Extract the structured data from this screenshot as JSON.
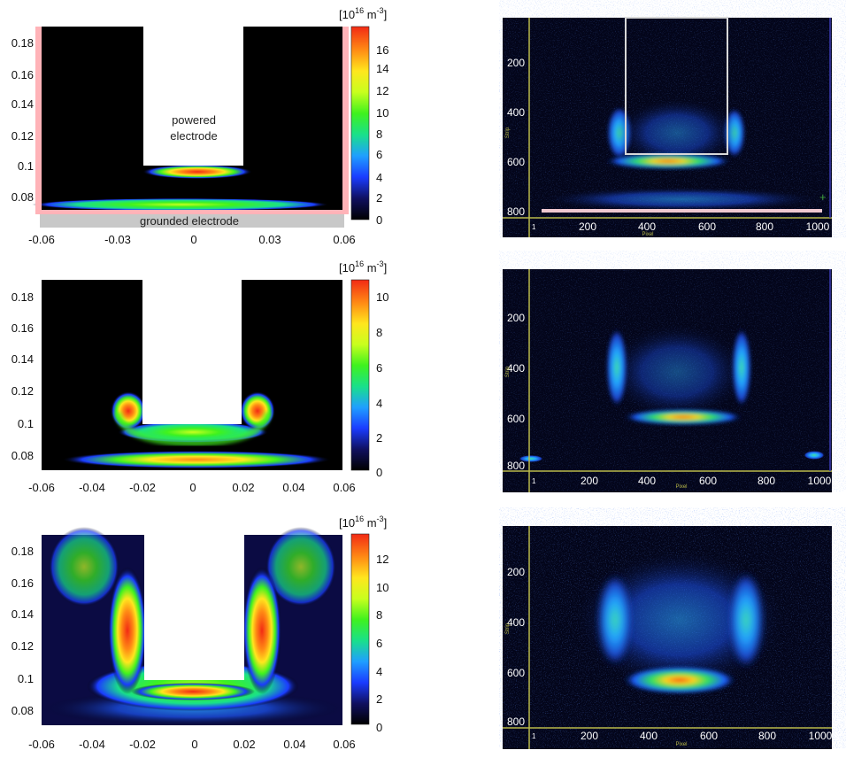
{
  "chart_data": [
    {
      "type": "heatmap",
      "panel": "simulation",
      "xlim": [
        -0.06,
        0.06
      ],
      "ylim": [
        0.065,
        0.192
      ],
      "xticks": [
        "-0.06",
        "-0.03",
        "0",
        "0.03",
        "0.06"
      ],
      "yticks": [
        "0.18",
        "0.16",
        "0.14",
        "0.12",
        "0.1",
        "0.08"
      ],
      "colorbar_unit": "[10",
      "colorbar_unit_sup": "16",
      "colorbar_unit_rest": " m",
      "colorbar_unit_sup2": "-3",
      "colorbar_unit_end": "]",
      "colorbar_range": [
        0,
        18
      ],
      "colorbar_ticks": [
        "16",
        "14",
        "12",
        "10",
        "8",
        "6",
        "4",
        "2",
        "0"
      ],
      "annotations": [
        "powered",
        "electrode",
        "grounded electrode"
      ],
      "electrode_x": [
        -0.02,
        0.02
      ],
      "electrode_bottom_y": 0.1,
      "peak_density": 17.0,
      "peak_location": {
        "x": 0.0,
        "y": 0.097
      }
    },
    {
      "type": "heatmap",
      "panel": "camera image",
      "xticks": [
        "1",
        "200",
        "400",
        "600",
        "800",
        "1000"
      ],
      "yticks": [
        "200",
        "400",
        "600",
        "800"
      ],
      "xlabel": "Pixel",
      "ylabel": "Strip"
    },
    {
      "type": "heatmap",
      "panel": "simulation",
      "xlim": [
        -0.06,
        0.06
      ],
      "ylim": [
        0.068,
        0.193
      ],
      "xticks": [
        "-0.06",
        "-0.04",
        "-0.02",
        "0",
        "0.02",
        "0.04",
        "0.06"
      ],
      "yticks": [
        "0.18",
        "0.16",
        "0.14",
        "0.12",
        "0.1",
        "0.08"
      ],
      "colorbar_unit": "[10",
      "colorbar_unit_sup": "16",
      "colorbar_unit_rest": " m",
      "colorbar_unit_sup2": "-3",
      "colorbar_unit_end": "]",
      "colorbar_range": [
        0,
        10.8
      ],
      "colorbar_ticks": [
        "10",
        "8",
        "6",
        "4",
        "2",
        "0"
      ],
      "electrode_x": [
        -0.02,
        0.02
      ],
      "electrode_bottom_y": 0.1,
      "peak_density": 10.5,
      "peak_location": {
        "x": -0.026,
        "y": 0.105
      }
    },
    {
      "type": "heatmap",
      "panel": "camera image",
      "xticks": [
        "1",
        "200",
        "400",
        "600",
        "800",
        "1000"
      ],
      "yticks": [
        "200",
        "400",
        "600",
        "800"
      ],
      "xlabel": "Pixel",
      "ylabel": "Strip"
    },
    {
      "type": "heatmap",
      "panel": "simulation",
      "xlim": [
        -0.06,
        0.06
      ],
      "ylim": [
        0.068,
        0.19
      ],
      "xticks": [
        "-0.06",
        "-0.04",
        "-0.02",
        "0",
        "0.02",
        "0.04",
        "0.06"
      ],
      "yticks": [
        "0.18",
        "0.16",
        "0.14",
        "0.12",
        "0.1",
        "0.08"
      ],
      "colorbar_unit": "[10",
      "colorbar_unit_sup": "16",
      "colorbar_unit_rest": " m",
      "colorbar_unit_sup2": "-3",
      "colorbar_unit_end": "]",
      "colorbar_range": [
        0,
        13.5
      ],
      "colorbar_ticks": [
        "12",
        "10",
        "8",
        "6",
        "4",
        "2",
        "0"
      ],
      "electrode_x": [
        -0.02,
        0.02
      ],
      "electrode_bottom_y": 0.1,
      "peak_density": 13.0,
      "peak_location": {
        "x": -0.027,
        "y": 0.135
      }
    },
    {
      "type": "heatmap",
      "panel": "camera image",
      "xticks": [
        "1",
        "200",
        "400",
        "600",
        "800",
        "1000"
      ],
      "yticks": [
        "200",
        "400",
        "600",
        "800"
      ],
      "xlabel": "Pixel",
      "ylabel": "Strip"
    }
  ],
  "colors": {
    "colormap": [
      "#000000",
      "#101060",
      "#1a3cff",
      "#1f9fff",
      "#19e08a",
      "#3ff21e",
      "#c8ff1e",
      "#ffe61e",
      "#ff8a14",
      "#f22a14"
    ],
    "electrode_border": "#ffb3b8",
    "grounded_fill": "#c8c8c8",
    "camera_bg": "#03051a",
    "camera_axis": "#b9b94a"
  }
}
